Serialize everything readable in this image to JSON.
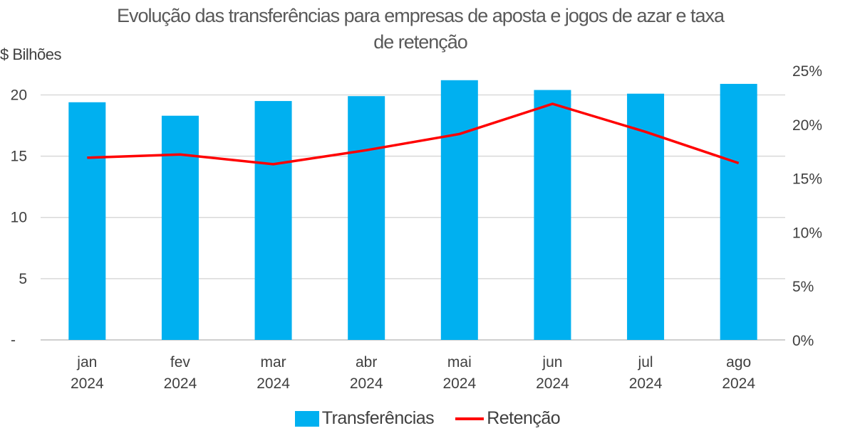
{
  "chart_data": {
    "type": "bar",
    "title": "Evolução das transferências para empresas de aposta e jogos de azar e taxa de retenção",
    "title_lines": [
      "Evolução das transferências para empresas de aposta e jogos de azar e taxa",
      "de retenção"
    ],
    "ylabel": "$ Bilhões",
    "categories": [
      [
        "jan",
        "2024"
      ],
      [
        "fev",
        "2024"
      ],
      [
        "mar",
        "2024"
      ],
      [
        "abr",
        "2024"
      ],
      [
        "mai",
        "2024"
      ],
      [
        "jun",
        "2024"
      ],
      [
        "jul",
        "2024"
      ],
      [
        "ago",
        "2024"
      ]
    ],
    "ylim": [
      0,
      22
    ],
    "y_ticks": [
      0,
      5,
      10,
      15,
      20
    ],
    "y_tick_labels": [
      "-",
      "5",
      "10",
      "15",
      "20"
    ],
    "y2lim": [
      0,
      25
    ],
    "y2_ticks": [
      0,
      5,
      10,
      15,
      20,
      25
    ],
    "y2_tick_labels": [
      "0%",
      "5%",
      "10%",
      "15%",
      "20%",
      "25%"
    ],
    "grid": true,
    "legend_position": "bottom",
    "series": [
      {
        "name": "Transferências",
        "type": "bar",
        "axis": "left",
        "color": "#00b0f0",
        "values": [
          19.4,
          18.3,
          19.5,
          19.9,
          21.2,
          20.4,
          20.1,
          20.9
        ]
      },
      {
        "name": "Retenção",
        "type": "line",
        "axis": "right",
        "color": "#ff0000",
        "values": [
          16.9,
          17.2,
          16.3,
          17.6,
          19.1,
          21.9,
          19.3,
          16.4
        ]
      }
    ]
  }
}
